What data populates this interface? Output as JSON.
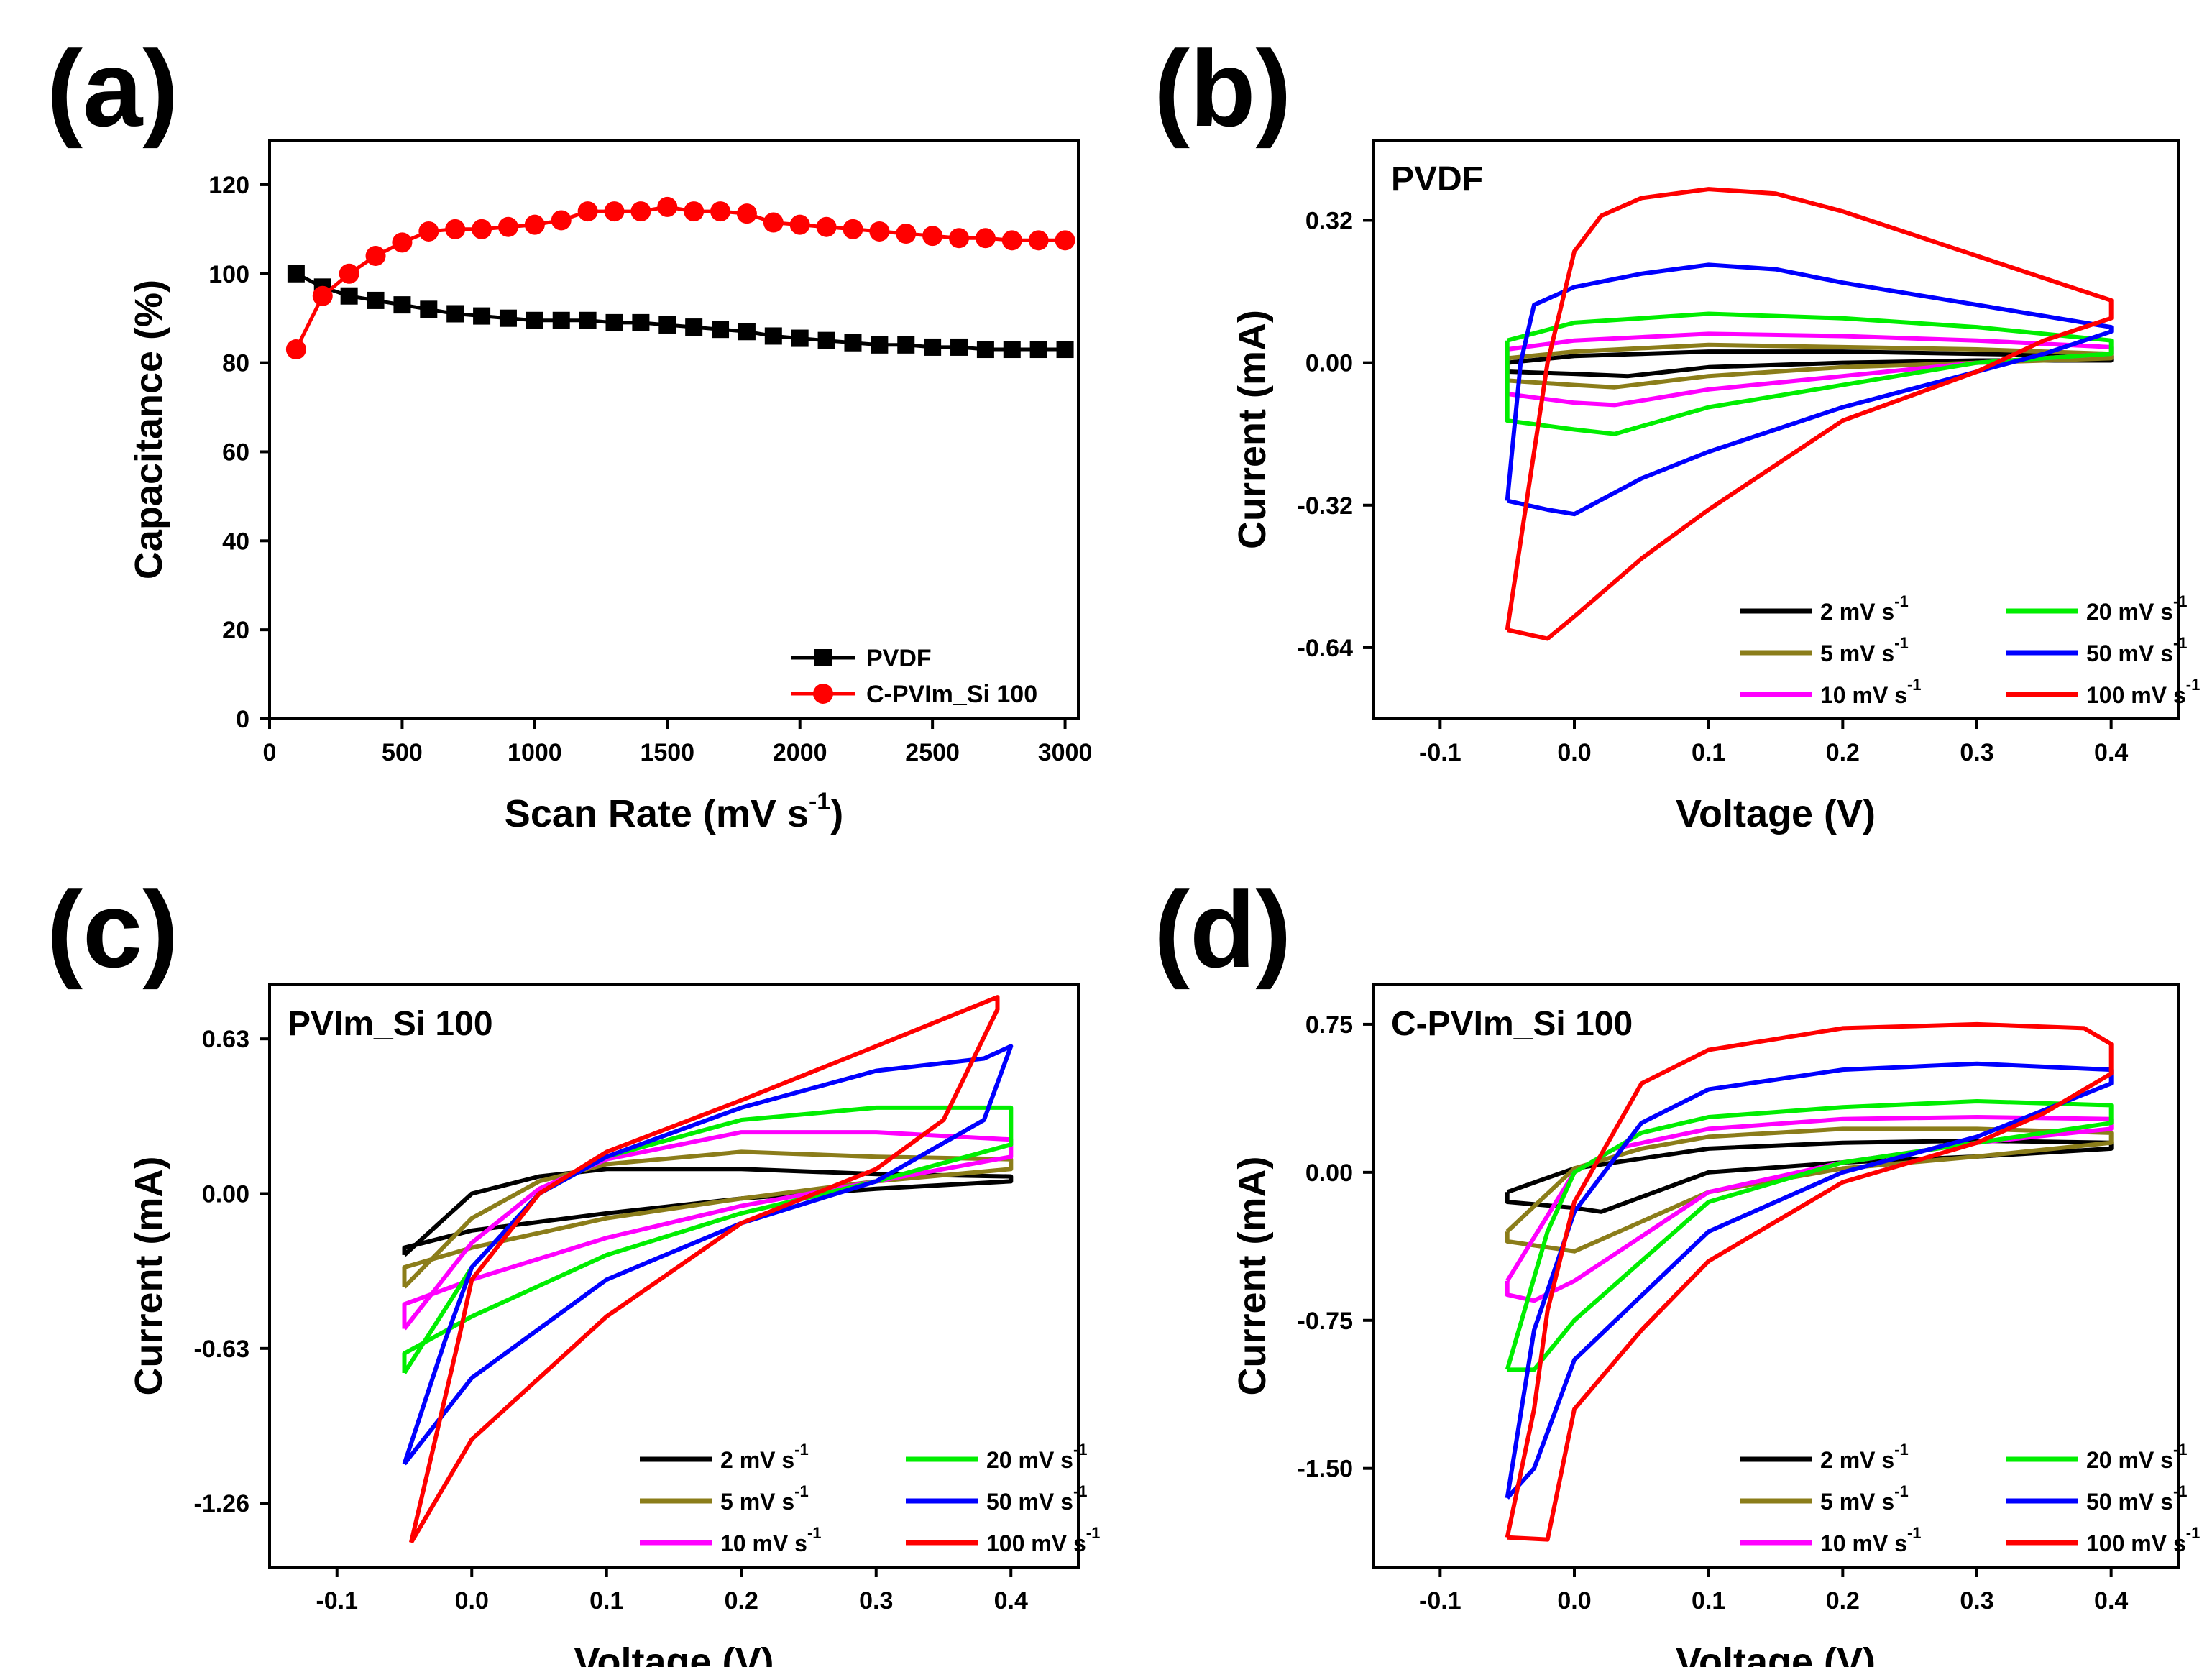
{
  "colors": {
    "c2": "#000000",
    "c5": "#8b7d1a",
    "c10": "#ff00ff",
    "c20": "#00ee00",
    "c50": "#0000ff",
    "c100": "#ff0000"
  },
  "chart_data": [
    {
      "id": "a",
      "type": "line",
      "panel_label": "(a)",
      "title": "",
      "xlabel": "Scan Rate (mV s",
      "xlabel_sup": "-1",
      "xlabel_end": ")",
      "ylabel": "Capacitance (%)",
      "xlim": [
        0,
        3050
      ],
      "ylim": [
        0,
        130
      ],
      "xticks": [
        0,
        500,
        1000,
        1500,
        2000,
        2500,
        3000
      ],
      "yticks": [
        0,
        20,
        40,
        60,
        80,
        100,
        120
      ],
      "legend_position": "bottom-right",
      "series": [
        {
          "name": "PVDF",
          "color": "#000000",
          "marker": "square",
          "x": [
            100,
            200,
            300,
            400,
            500,
            600,
            700,
            800,
            900,
            1000,
            1100,
            1200,
            1300,
            1400,
            1500,
            1600,
            1700,
            1800,
            1900,
            2000,
            2100,
            2200,
            2300,
            2400,
            2500,
            2600,
            2700,
            2800,
            2900,
            3000
          ],
          "y": [
            100,
            97,
            95,
            94,
            93,
            92,
            91,
            90.5,
            90,
            89.5,
            89.5,
            89.5,
            89,
            89,
            88.5,
            88,
            87.5,
            87,
            86,
            85.5,
            85,
            84.5,
            84,
            84,
            83.5,
            83.5,
            83,
            83,
            83,
            83
          ]
        },
        {
          "name": "C-PVIm_Si 100",
          "color": "#ff0000",
          "marker": "circle",
          "x": [
            100,
            200,
            300,
            400,
            500,
            600,
            700,
            800,
            900,
            1000,
            1100,
            1200,
            1300,
            1400,
            1500,
            1600,
            1700,
            1800,
            1900,
            2000,
            2100,
            2200,
            2300,
            2400,
            2500,
            2600,
            2700,
            2800,
            2900,
            3000
          ],
          "y": [
            83,
            95,
            100,
            104,
            107,
            109.5,
            110,
            110,
            110.5,
            111,
            112,
            114,
            114,
            114,
            115,
            114,
            114,
            113.5,
            111.5,
            111,
            110.5,
            110,
            109.5,
            109,
            108.5,
            108,
            108,
            107.5,
            107.5,
            107.5
          ]
        }
      ]
    },
    {
      "id": "b",
      "type": "line",
      "panel_label": "(b)",
      "title": "PVDF",
      "xlabel": "Voltage (V)",
      "ylabel": "Current (mA)",
      "xlim": [
        -0.15,
        0.45
      ],
      "ylim": [
        -0.8,
        0.5
      ],
      "xticks": [
        -0.1,
        0.0,
        0.1,
        0.2,
        0.3,
        0.4
      ],
      "xtick_labels": [
        "-0.1",
        "0.0",
        "0.1",
        "0.2",
        "0.3",
        "0.4"
      ],
      "yticks": [
        0.32,
        0.0,
        -0.32,
        -0.64
      ],
      "ytick_labels": [
        "0.32",
        "0.00",
        "-0.32",
        "-0.64"
      ],
      "legend_position": "bottom-right",
      "series": [
        {
          "name": "2 mV s",
          "sup": "-1",
          "color": "#000000",
          "x": [
            -0.05,
            0.0,
            0.1,
            0.2,
            0.3,
            0.4,
            0.4,
            0.3,
            0.2,
            0.1,
            0.04,
            0.0,
            -0.05,
            -0.05
          ],
          "y": [
            0.0,
            0.015,
            0.025,
            0.025,
            0.02,
            0.015,
            0.005,
            0.005,
            0.0,
            -0.01,
            -0.03,
            -0.025,
            -0.02,
            0.0
          ]
        },
        {
          "name": "5 mV s",
          "sup": "-1",
          "color": "#8b7d1a",
          "x": [
            -0.05,
            0.0,
            0.1,
            0.2,
            0.3,
            0.4,
            0.4,
            0.3,
            0.2,
            0.1,
            0.03,
            0.0,
            -0.05,
            -0.05
          ],
          "y": [
            0.01,
            0.025,
            0.04,
            0.035,
            0.03,
            0.02,
            0.01,
            0.0,
            -0.01,
            -0.03,
            -0.055,
            -0.05,
            -0.04,
            0.01
          ]
        },
        {
          "name": "10 mV s",
          "sup": "-1",
          "color": "#ff00ff",
          "x": [
            -0.05,
            0.0,
            0.1,
            0.2,
            0.3,
            0.4,
            0.4,
            0.3,
            0.2,
            0.1,
            0.03,
            0.0,
            -0.05,
            -0.05
          ],
          "y": [
            0.03,
            0.05,
            0.065,
            0.06,
            0.05,
            0.035,
            0.02,
            0.0,
            -0.03,
            -0.06,
            -0.095,
            -0.09,
            -0.07,
            0.03
          ]
        },
        {
          "name": "20 mV s",
          "sup": "-1",
          "color": "#00ee00",
          "x": [
            -0.05,
            0.0,
            0.1,
            0.2,
            0.3,
            0.4,
            0.4,
            0.3,
            0.2,
            0.1,
            0.03,
            0.0,
            -0.05,
            -0.05
          ],
          "y": [
            0.05,
            0.09,
            0.11,
            0.1,
            0.08,
            0.05,
            0.02,
            0.0,
            -0.05,
            -0.1,
            -0.16,
            -0.15,
            -0.13,
            0.05
          ]
        },
        {
          "name": "50 mV s",
          "sup": "-1",
          "color": "#0000ff",
          "x": [
            -0.05,
            -0.04,
            -0.03,
            0.0,
            0.05,
            0.1,
            0.15,
            0.2,
            0.3,
            0.4,
            0.4,
            0.35,
            0.3,
            0.2,
            0.1,
            0.05,
            0.0,
            -0.02,
            -0.05,
            -0.05
          ],
          "y": [
            -0.31,
            0.0,
            0.13,
            0.17,
            0.2,
            0.22,
            0.21,
            0.18,
            0.13,
            0.08,
            0.07,
            0.02,
            -0.02,
            -0.1,
            -0.2,
            -0.26,
            -0.34,
            -0.33,
            -0.31,
            -0.31
          ]
        },
        {
          "name": "100 mV s",
          "sup": "-1",
          "color": "#ff0000",
          "x": [
            -0.05,
            -0.02,
            0.0,
            0.02,
            0.05,
            0.1,
            0.15,
            0.2,
            0.3,
            0.4,
            0.4,
            0.35,
            0.3,
            0.2,
            0.1,
            0.05,
            0.0,
            -0.02,
            -0.05,
            -0.05
          ],
          "y": [
            -0.6,
            0.0,
            0.25,
            0.33,
            0.37,
            0.39,
            0.38,
            0.34,
            0.24,
            0.14,
            0.1,
            0.05,
            -0.02,
            -0.13,
            -0.33,
            -0.44,
            -0.57,
            -0.62,
            -0.6,
            -0.6
          ]
        }
      ]
    },
    {
      "id": "c",
      "type": "line",
      "panel_label": "(c)",
      "title": "PVIm_Si 100",
      "xlabel": "Voltage (V)",
      "ylabel": "Current (mA)",
      "xlim": [
        -0.15,
        0.45
      ],
      "ylim": [
        -1.52,
        0.85
      ],
      "xticks": [
        -0.1,
        0.0,
        0.1,
        0.2,
        0.3,
        0.4
      ],
      "xtick_labels": [
        "-0.1",
        "0.0",
        "0.1",
        "0.2",
        "0.3",
        "0.4"
      ],
      "yticks": [
        0.63,
        0.0,
        -0.63,
        -1.26
      ],
      "ytick_labels": [
        "0.63",
        "0.00",
        "-0.63",
        "-1.26"
      ],
      "legend_position": "bottom-right",
      "series": [
        {
          "name": "2 mV s",
          "sup": "-1",
          "color": "#000000",
          "x": [
            -0.05,
            0.0,
            0.05,
            0.1,
            0.2,
            0.3,
            0.4,
            0.4,
            0.3,
            0.2,
            0.1,
            0.0,
            -0.05,
            -0.05
          ],
          "y": [
            -0.25,
            0.0,
            0.07,
            0.1,
            0.1,
            0.08,
            0.07,
            0.05,
            0.02,
            -0.02,
            -0.08,
            -0.15,
            -0.22,
            -0.25
          ]
        },
        {
          "name": "5 mV s",
          "sup": "-1",
          "color": "#8b7d1a",
          "x": [
            -0.05,
            0.0,
            0.05,
            0.1,
            0.2,
            0.3,
            0.4,
            0.4,
            0.3,
            0.2,
            0.1,
            0.0,
            -0.05,
            -0.05
          ],
          "y": [
            -0.38,
            -0.1,
            0.05,
            0.12,
            0.17,
            0.15,
            0.14,
            0.1,
            0.05,
            -0.02,
            -0.1,
            -0.22,
            -0.3,
            -0.38
          ]
        },
        {
          "name": "10 mV s",
          "sup": "-1",
          "color": "#ff00ff",
          "x": [
            -0.05,
            0.0,
            0.05,
            0.1,
            0.2,
            0.3,
            0.4,
            0.4,
            0.3,
            0.2,
            0.1,
            0.0,
            -0.05,
            -0.05
          ],
          "y": [
            -0.55,
            -0.2,
            0.02,
            0.14,
            0.25,
            0.25,
            0.22,
            0.15,
            0.05,
            -0.05,
            -0.18,
            -0.35,
            -0.45,
            -0.55
          ]
        },
        {
          "name": "20 mV s",
          "sup": "-1",
          "color": "#00ee00",
          "x": [
            -0.05,
            0.0,
            0.05,
            0.1,
            0.2,
            0.3,
            0.4,
            0.4,
            0.3,
            0.2,
            0.1,
            0.0,
            -0.05,
            -0.05
          ],
          "y": [
            -0.73,
            -0.3,
            0.0,
            0.15,
            0.3,
            0.35,
            0.35,
            0.2,
            0.05,
            -0.08,
            -0.25,
            -0.5,
            -0.65,
            -0.73
          ]
        },
        {
          "name": "50 mV s",
          "sup": "-1",
          "color": "#0000ff",
          "x": [
            -0.05,
            -0.02,
            0.0,
            0.05,
            0.1,
            0.2,
            0.3,
            0.38,
            0.4,
            0.38,
            0.3,
            0.2,
            0.1,
            0.0,
            -0.05
          ],
          "y": [
            -1.1,
            -0.6,
            -0.3,
            0.0,
            0.15,
            0.35,
            0.5,
            0.55,
            0.6,
            0.3,
            0.05,
            -0.12,
            -0.35,
            -0.75,
            -1.1
          ]
        },
        {
          "name": "100 mV s",
          "sup": "-1",
          "color": "#ff0000",
          "x": [
            -0.045,
            -0.01,
            0.0,
            0.05,
            0.1,
            0.2,
            0.3,
            0.39,
            0.39,
            0.35,
            0.3,
            0.2,
            0.1,
            0.0,
            -0.045
          ],
          "y": [
            -1.42,
            -0.6,
            -0.35,
            0.0,
            0.17,
            0.38,
            0.6,
            0.8,
            0.75,
            0.3,
            0.1,
            -0.12,
            -0.5,
            -1.0,
            -1.42
          ]
        }
      ]
    },
    {
      "id": "d",
      "type": "line",
      "panel_label": "(d)",
      "title": "C-PVIm_Si 100",
      "xlabel": "Voltage (V)",
      "ylabel": "Current (mA)",
      "xlim": [
        -0.15,
        0.45
      ],
      "ylim": [
        -2.0,
        0.95
      ],
      "xticks": [
        -0.1,
        0.0,
        0.1,
        0.2,
        0.3,
        0.4
      ],
      "xtick_labels": [
        "-0.1",
        "0.0",
        "0.1",
        "0.2",
        "0.3",
        "0.4"
      ],
      "yticks": [
        0.75,
        0.0,
        -0.75,
        -1.5
      ],
      "ytick_labels": [
        "0.75",
        "0.00",
        "-0.75",
        "-1.50"
      ],
      "legend_position": "bottom-right",
      "series": [
        {
          "name": "2 mV s",
          "sup": "-1",
          "color": "#000000",
          "x": [
            -0.05,
            0.0,
            0.1,
            0.2,
            0.3,
            0.4,
            0.4,
            0.3,
            0.2,
            0.1,
            0.02,
            0.0,
            -0.05,
            -0.05
          ],
          "y": [
            -0.1,
            0.02,
            0.12,
            0.15,
            0.16,
            0.15,
            0.12,
            0.08,
            0.05,
            0.0,
            -0.2,
            -0.18,
            -0.15,
            -0.1
          ]
        },
        {
          "name": "5 mV s",
          "sup": "-1",
          "color": "#8b7d1a",
          "x": [
            -0.05,
            0.0,
            0.05,
            0.1,
            0.2,
            0.3,
            0.4,
            0.4,
            0.3,
            0.2,
            0.1,
            0.0,
            -0.05,
            -0.05
          ],
          "y": [
            -0.3,
            0.02,
            0.12,
            0.18,
            0.22,
            0.22,
            0.2,
            0.15,
            0.08,
            0.02,
            -0.1,
            -0.4,
            -0.35,
            -0.3
          ]
        },
        {
          "name": "10 mV s",
          "sup": "-1",
          "color": "#ff00ff",
          "x": [
            -0.05,
            0.0,
            0.03,
            0.1,
            0.2,
            0.3,
            0.4,
            0.4,
            0.3,
            0.2,
            0.1,
            0.0,
            -0.03,
            -0.05,
            -0.05
          ],
          "y": [
            -0.55,
            0.0,
            0.12,
            0.22,
            0.27,
            0.28,
            0.27,
            0.22,
            0.15,
            0.05,
            -0.1,
            -0.55,
            -0.65,
            -0.62,
            -0.55
          ]
        },
        {
          "name": "20 mV s",
          "sup": "-1",
          "color": "#00ee00",
          "x": [
            -0.05,
            -0.02,
            0.0,
            0.05,
            0.1,
            0.2,
            0.3,
            0.4,
            0.4,
            0.3,
            0.2,
            0.1,
            0.0,
            -0.03,
            -0.05
          ],
          "y": [
            -1.0,
            -0.3,
            0.0,
            0.2,
            0.28,
            0.33,
            0.36,
            0.34,
            0.25,
            0.15,
            0.05,
            -0.15,
            -0.75,
            -1.0,
            -1.0
          ]
        },
        {
          "name": "50 mV s",
          "sup": "-1",
          "color": "#0000ff",
          "x": [
            -0.05,
            -0.03,
            0.0,
            0.05,
            0.1,
            0.2,
            0.3,
            0.4,
            0.4,
            0.3,
            0.2,
            0.1,
            0.0,
            -0.03,
            -0.05
          ],
          "y": [
            -1.65,
            -0.8,
            -0.2,
            0.25,
            0.42,
            0.52,
            0.55,
            0.52,
            0.45,
            0.18,
            0.0,
            -0.3,
            -0.95,
            -1.5,
            -1.65
          ]
        },
        {
          "name": "100 mV s",
          "sup": "-1",
          "color": "#ff0000",
          "x": [
            -0.05,
            -0.03,
            -0.02,
            0.0,
            0.05,
            0.1,
            0.2,
            0.3,
            0.38,
            0.4,
            0.4,
            0.35,
            0.3,
            0.2,
            0.1,
            0.05,
            0.0,
            -0.02,
            -0.05
          ],
          "y": [
            -1.85,
            -1.2,
            -0.7,
            -0.15,
            0.45,
            0.62,
            0.73,
            0.75,
            0.73,
            0.65,
            0.5,
            0.3,
            0.15,
            -0.05,
            -0.45,
            -0.8,
            -1.2,
            -1.86,
            -1.85
          ]
        }
      ]
    }
  ]
}
